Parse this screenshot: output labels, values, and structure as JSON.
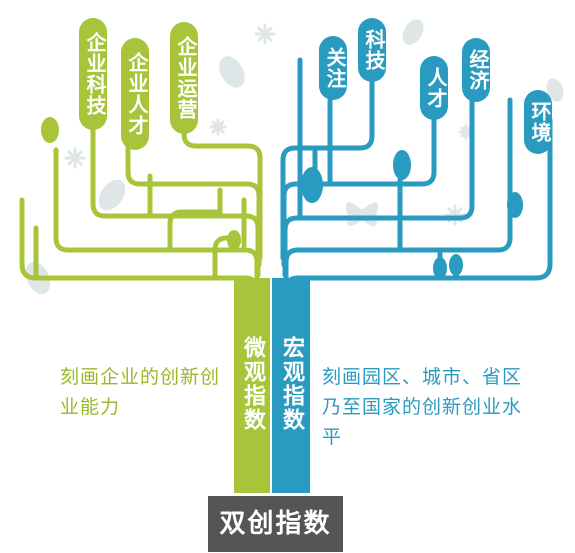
{
  "colors": {
    "green": "#a8c43a",
    "blue": "#2a9bc0",
    "base": "#555555",
    "decor": "#d8e0e2"
  },
  "tree": {
    "left_trunk": "微观指数",
    "right_trunk": "宏观指数",
    "base": "双创指数"
  },
  "branches": {
    "left": [
      "企业科技",
      "企业人才",
      "企业运营"
    ],
    "right": [
      "关注",
      "科技",
      "人才",
      "经济",
      "环境"
    ]
  },
  "descriptions": {
    "left": "刻画企业的创新创业能力",
    "right": "刻画园区、城市、省区乃至国家的创新创业水平"
  }
}
